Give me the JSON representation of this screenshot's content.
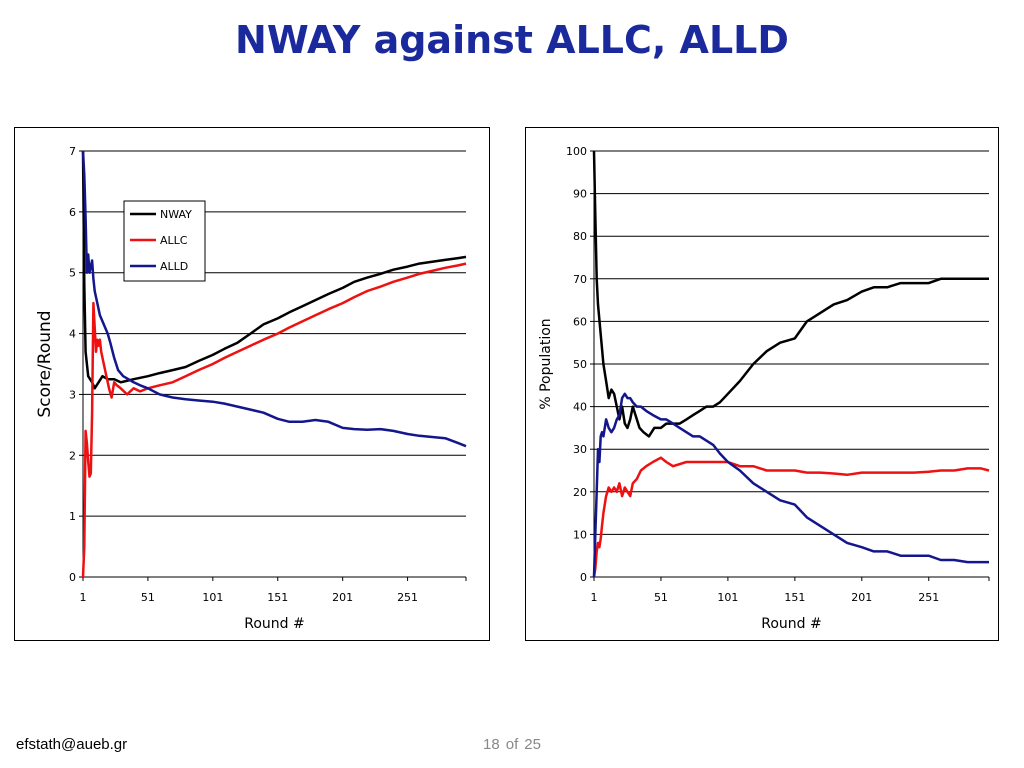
{
  "slide": {
    "title": "NWAY against ALLC, ALLD",
    "footer_email": "efstath@aueb.gr",
    "page_current": "18",
    "page_of": "of",
    "page_total": "25"
  },
  "colors": {
    "title": "#1a2a9c",
    "NWAY": "#000000",
    "ALLC": "#ee1111",
    "ALLD": "#14168c"
  },
  "chart_data": [
    {
      "type": "line",
      "xlabel": "Round #",
      "ylabel": "Score/Round",
      "xlim": [
        1,
        296
      ],
      "ylim": [
        0,
        7
      ],
      "xticks": [
        1,
        51,
        101,
        151,
        201,
        251
      ],
      "yticks": [
        0,
        1,
        2,
        3,
        4,
        5,
        6,
        7
      ],
      "grid": "horizontal",
      "legend": "top-left",
      "series": [
        {
          "name": "NWAY",
          "color": "#000000",
          "x": [
            1,
            2,
            3,
            5,
            8,
            10,
            13,
            16,
            20,
            25,
            30,
            40,
            51,
            60,
            70,
            80,
            90,
            101,
            110,
            120,
            130,
            140,
            151,
            160,
            170,
            180,
            190,
            201,
            210,
            220,
            230,
            240,
            251,
            260,
            270,
            280,
            290,
            296
          ],
          "y": [
            7.0,
            4.8,
            3.7,
            3.3,
            3.2,
            3.1,
            3.2,
            3.3,
            3.25,
            3.25,
            3.2,
            3.25,
            3.3,
            3.35,
            3.4,
            3.45,
            3.55,
            3.65,
            3.75,
            3.85,
            4.0,
            4.15,
            4.25,
            4.35,
            4.45,
            4.55,
            4.65,
            4.75,
            4.85,
            4.92,
            4.98,
            5.05,
            5.1,
            5.15,
            5.18,
            5.21,
            5.24,
            5.26
          ]
        },
        {
          "name": "ALLC",
          "color": "#ee1111",
          "x": [
            1,
            2,
            3,
            4,
            5,
            6,
            7,
            8,
            9,
            10,
            11,
            12,
            13,
            14,
            15,
            17,
            19,
            21,
            23,
            25,
            27,
            30,
            35,
            40,
            45,
            51,
            60,
            70,
            80,
            90,
            101,
            110,
            120,
            130,
            140,
            151,
            160,
            170,
            180,
            190,
            201,
            210,
            220,
            230,
            240,
            251,
            260,
            270,
            280,
            290,
            296
          ],
          "y": [
            0,
            0.5,
            2.4,
            2.2,
            1.9,
            1.65,
            1.7,
            2.7,
            4.5,
            4.1,
            3.7,
            3.9,
            3.8,
            3.9,
            3.7,
            3.5,
            3.3,
            3.1,
            2.95,
            3.2,
            3.15,
            3.1,
            3.0,
            3.1,
            3.05,
            3.1,
            3.15,
            3.2,
            3.3,
            3.4,
            3.5,
            3.6,
            3.7,
            3.8,
            3.9,
            4.0,
            4.1,
            4.2,
            4.3,
            4.4,
            4.5,
            4.6,
            4.7,
            4.77,
            4.85,
            4.92,
            4.98,
            5.03,
            5.08,
            5.12,
            5.15
          ]
        },
        {
          "name": "ALLD",
          "color": "#14168c",
          "x": [
            1,
            2,
            3,
            4,
            5,
            6,
            7,
            8,
            9,
            10,
            11,
            12,
            14,
            16,
            18,
            20,
            22,
            25,
            28,
            32,
            36,
            40,
            45,
            51,
            60,
            70,
            80,
            90,
            101,
            110,
            120,
            130,
            140,
            151,
            160,
            170,
            180,
            190,
            201,
            210,
            220,
            230,
            240,
            251,
            260,
            270,
            280,
            290,
            296
          ],
          "y": [
            7.0,
            6.6,
            5.9,
            5.0,
            5.3,
            5.0,
            5.1,
            5.2,
            4.9,
            4.7,
            4.6,
            4.5,
            4.3,
            4.2,
            4.1,
            4.0,
            3.85,
            3.6,
            3.4,
            3.3,
            3.25,
            3.2,
            3.15,
            3.1,
            3.0,
            2.95,
            2.92,
            2.9,
            2.88,
            2.85,
            2.8,
            2.75,
            2.7,
            2.6,
            2.55,
            2.55,
            2.58,
            2.55,
            2.45,
            2.43,
            2.42,
            2.43,
            2.4,
            2.35,
            2.32,
            2.3,
            2.28,
            2.2,
            2.15
          ]
        }
      ]
    },
    {
      "type": "line",
      "xlabel": "Round #",
      "ylabel": "% Population",
      "xlim": [
        1,
        296
      ],
      "ylim": [
        0,
        100
      ],
      "xticks": [
        1,
        51,
        101,
        151,
        201,
        251
      ],
      "yticks": [
        0,
        10,
        20,
        30,
        40,
        50,
        60,
        70,
        80,
        90,
        100
      ],
      "grid": "horizontal",
      "series": [
        {
          "name": "NWAY",
          "color": "#000000",
          "x": [
            1,
            2,
            3,
            4,
            6,
            8,
            10,
            12,
            14,
            16,
            18,
            20,
            22,
            24,
            26,
            28,
            30,
            32,
            35,
            38,
            42,
            46,
            51,
            55,
            60,
            65,
            70,
            75,
            80,
            85,
            90,
            95,
            101,
            110,
            120,
            130,
            140,
            151,
            160,
            170,
            180,
            190,
            201,
            210,
            220,
            230,
            240,
            251,
            260,
            270,
            280,
            290,
            296
          ],
          "y": [
            100,
            85,
            70,
            64,
            57,
            50,
            46,
            42,
            44,
            43,
            40,
            37,
            40,
            36,
            35,
            37,
            40,
            38,
            35,
            34,
            33,
            35,
            35,
            36,
            36,
            36,
            37,
            38,
            39,
            40,
            40,
            41,
            43,
            46,
            50,
            53,
            55,
            56,
            60,
            62,
            64,
            65,
            67,
            68,
            68,
            69,
            69,
            69,
            70,
            70,
            70,
            70,
            70
          ]
        },
        {
          "name": "ALLC",
          "color": "#ee1111",
          "x": [
            1,
            2,
            3,
            4,
            5,
            6,
            7,
            8,
            10,
            12,
            14,
            16,
            18,
            20,
            22,
            24,
            26,
            28,
            30,
            33,
            36,
            40,
            45,
            51,
            55,
            60,
            70,
            80,
            90,
            101,
            110,
            120,
            130,
            140,
            151,
            160,
            170,
            180,
            190,
            201,
            210,
            220,
            230,
            240,
            251,
            260,
            270,
            280,
            290,
            296
          ],
          "y": [
            0,
            2,
            6,
            8,
            7,
            9,
            12,
            15,
            19,
            21,
            20,
            21,
            20,
            22,
            19,
            21,
            20,
            19,
            22,
            23,
            25,
            26,
            27,
            28,
            27,
            26,
            27,
            27,
            27,
            27,
            26,
            26,
            25,
            25,
            25,
            24.5,
            24.5,
            24.3,
            24,
            24.5,
            24.5,
            24.5,
            24.5,
            24.5,
            24.7,
            25,
            25,
            25.5,
            25.5,
            25
          ]
        },
        {
          "name": "ALLD",
          "color": "#14168c",
          "x": [
            1,
            2,
            3,
            4,
            5,
            6,
            7,
            8,
            10,
            12,
            14,
            16,
            18,
            20,
            22,
            24,
            26,
            28,
            30,
            33,
            36,
            40,
            45,
            51,
            55,
            60,
            65,
            70,
            75,
            80,
            85,
            90,
            95,
            101,
            110,
            120,
            130,
            140,
            151,
            160,
            170,
            180,
            190,
            201,
            210,
            220,
            230,
            240,
            251,
            260,
            270,
            280,
            290,
            296
          ],
          "y": [
            0,
            10,
            20,
            30,
            27,
            33,
            34,
            33,
            37,
            35,
            34,
            35,
            37,
            38,
            42,
            43,
            42,
            42,
            41,
            40,
            40,
            39,
            38,
            37,
            37,
            36,
            35,
            34,
            33,
            33,
            32,
            31,
            29,
            27,
            25,
            22,
            20,
            18,
            17,
            14,
            12,
            10,
            8,
            7,
            6,
            6,
            5,
            5,
            5,
            4,
            4,
            3.5,
            3.5,
            3.5
          ]
        }
      ]
    }
  ]
}
